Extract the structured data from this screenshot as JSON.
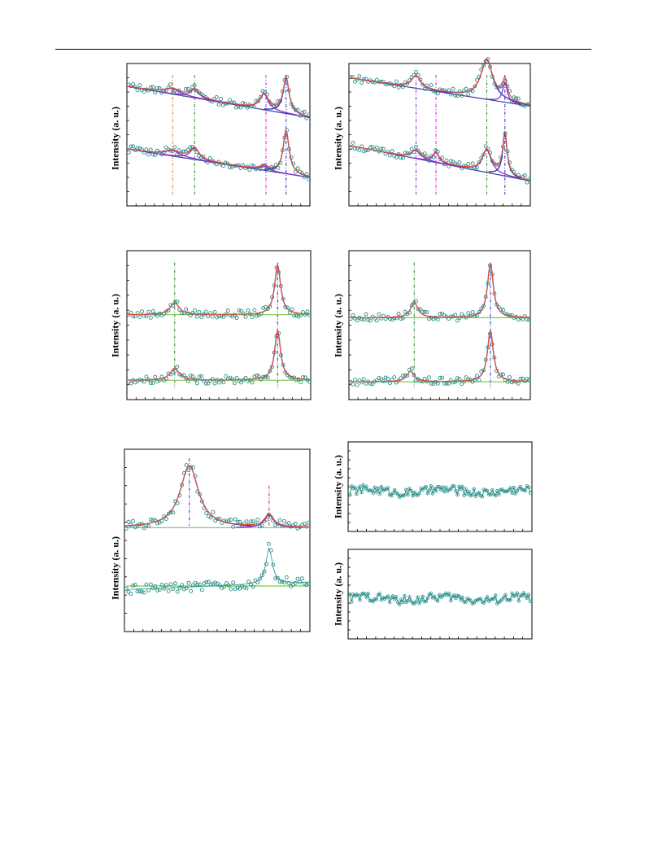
{
  "page": {
    "background": "#ffffff"
  },
  "colors": {
    "data": "#2a8f8a",
    "fit": "#e0533a",
    "fit2": "#2b2bb5",
    "background_line": "#3d3d9e",
    "baseline": "#7ac943",
    "guide_orange": "#f08020",
    "guide_green": "#2e8b2e",
    "guide_magenta": "#e020e0",
    "guide_blue": "#2a2ad0",
    "guide_red": "#d02020",
    "peak_purple": "#8b2bd0"
  },
  "chart_data": [
    {
      "id": "a",
      "type": "scatter",
      "ylabel": "Intensity (a. u.)",
      "xlim": [
        0,
        100
      ],
      "ylim": [
        0,
        100
      ],
      "x_ticks": 20,
      "baseline": "sloped",
      "guides": [
        {
          "x": 25,
          "color": "guide_orange"
        },
        {
          "x": 37,
          "color": "guide_green"
        },
        {
          "x": 76,
          "color": "guide_magenta"
        },
        {
          "x": 87,
          "color": "guide_blue"
        }
      ],
      "traces": [
        {
          "offset": 73,
          "slope": -0.22,
          "peaks": [
            {
              "x": 25,
              "h": 4,
              "w": 5
            },
            {
              "x": 37,
              "h": 6,
              "w": 3
            },
            {
              "x": 75,
              "h": 11,
              "w": 3
            },
            {
              "x": 87,
              "h": 25,
              "w": 2
            }
          ]
        },
        {
          "offset": 30,
          "slope": -0.2,
          "peaks": [
            {
              "x": 25,
              "h": 4,
              "w": 5
            },
            {
              "x": 37,
              "h": 8,
              "w": 3
            },
            {
              "x": 75,
              "h": 3,
              "w": 3
            },
            {
              "x": 87,
              "h": 30,
              "w": 2
            }
          ]
        }
      ]
    },
    {
      "id": "b",
      "type": "scatter",
      "ylabel": "Intensity (a. u.)",
      "xlim": [
        0,
        100
      ],
      "ylim": [
        0,
        100
      ],
      "x_ticks": 20,
      "baseline": "sloped",
      "guides": [
        {
          "x": 37,
          "color": "guide_purple_dash"
        },
        {
          "x": 48,
          "color": "guide_magenta"
        },
        {
          "x": 76,
          "color": "guide_green"
        },
        {
          "x": 86,
          "color": "guide_blue"
        }
      ],
      "traces": [
        {
          "offset": 80,
          "slope": -0.2,
          "peaks": [
            {
              "x": 37,
              "h": 9,
              "w": 3
            },
            {
              "x": 76,
              "h": 28,
              "w": 4
            },
            {
              "x": 86,
              "h": 14,
              "w": 1.5
            }
          ]
        },
        {
          "offset": 30,
          "slope": -0.25,
          "peaks": [
            {
              "x": 37,
              "h": 6,
              "w": 3
            },
            {
              "x": 48,
              "h": 7,
              "w": 2
            },
            {
              "x": 76,
              "h": 16,
              "w": 3
            },
            {
              "x": 86,
              "h": 30,
              "w": 1.5
            }
          ]
        }
      ]
    },
    {
      "id": "c",
      "type": "scatter",
      "ylabel": "Intensity (a. u.)",
      "xlim": [
        0,
        100
      ],
      "ylim": [
        0,
        100
      ],
      "x_ticks": 20,
      "baseline": "flat",
      "guides": [
        {
          "x": 26,
          "color": "guide_green"
        },
        {
          "x": 82,
          "color": "guide_blue"
        }
      ],
      "traces": [
        {
          "offset": 57,
          "slope": 0,
          "peaks": [
            {
              "x": 26,
              "h": 8,
              "w": 3
            },
            {
              "x": 82,
              "h": 33,
              "w": 2
            }
          ]
        },
        {
          "offset": 13,
          "slope": 0,
          "peaks": [
            {
              "x": 26,
              "h": 8,
              "w": 3
            },
            {
              "x": 82,
              "h": 33,
              "w": 2
            }
          ]
        }
      ]
    },
    {
      "id": "d",
      "type": "scatter",
      "ylabel": "Intensity (a. u.)",
      "xlim": [
        0,
        100
      ],
      "ylim": [
        0,
        100
      ],
      "x_ticks": 20,
      "baseline": "flat",
      "guides": [
        {
          "x": 36,
          "color": "guide_green"
        },
        {
          "x": 78,
          "color": "guide_blue"
        }
      ],
      "traces": [
        {
          "offset": 55,
          "slope": 0,
          "peaks": [
            {
              "x": 36,
              "h": 10,
              "w": 2.5
            },
            {
              "x": 78,
              "h": 36,
              "w": 2
            }
          ]
        },
        {
          "offset": 12,
          "slope": 0,
          "peaks": [
            {
              "x": 34,
              "h": 7,
              "w": 2.5
            },
            {
              "x": 78,
              "h": 34,
              "w": 2
            }
          ]
        }
      ]
    },
    {
      "id": "e",
      "type": "scatter",
      "ylabel": "Intensity (a. u.)",
      "xlim": [
        0,
        100
      ],
      "ylim": [
        0,
        100
      ],
      "x_ticks": 20,
      "baseline": "flat",
      "guides": [
        {
          "x": 35,
          "color": "guide_blue",
          "y_from": 58,
          "y_to": 95
        },
        {
          "x": 78,
          "color": "guide_red",
          "y_from": 58,
          "y_to": 80
        }
      ],
      "traces": [
        {
          "offset": 57,
          "slope": 0,
          "peaks": [
            {
              "x": 35,
              "h": 34,
              "w": 6
            },
            {
              "x": 78,
              "h": 7,
              "w": 3
            }
          ],
          "baseline_y": 57
        },
        {
          "offset": 25,
          "slope": 0.04,
          "peaks": [
            {
              "x": 78,
              "h": 20,
              "w": 2
            }
          ],
          "no_fit": true
        }
      ]
    },
    {
      "id": "f",
      "type": "line",
      "ylabel": "Intensity (a. u.)",
      "xlim": [
        0,
        100
      ],
      "ylim": [
        0,
        100
      ],
      "x_ticks": 20,
      "noise_only": true,
      "level": 45
    },
    {
      "id": "g",
      "type": "line",
      "ylabel": "Intensity (a. u.)",
      "xlim": [
        0,
        100
      ],
      "ylim": [
        0,
        100
      ],
      "x_ticks": 20,
      "noise_only": true,
      "level": 45
    }
  ]
}
